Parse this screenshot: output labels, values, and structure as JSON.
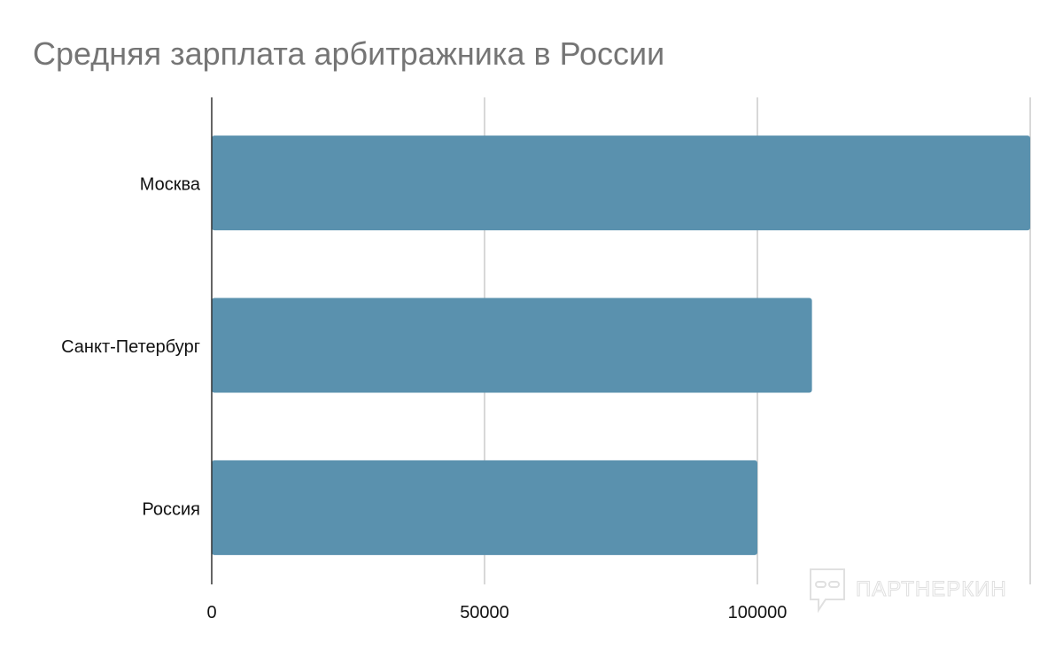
{
  "chart_data": {
    "type": "bar",
    "orientation": "horizontal",
    "title": "Средняя зарплата арбитражника в России",
    "categories": [
      "Москва",
      "Санкт-Петербург",
      "Россия"
    ],
    "values": [
      150000,
      110000,
      100000
    ],
    "xlabel": "",
    "ylabel": "",
    "xlim": [
      0,
      150000
    ],
    "xticks": [
      0,
      50000,
      100000
    ],
    "xtick_labels": [
      "0",
      "50000",
      "100000"
    ],
    "grid": true,
    "colors": {
      "bar": "#5a91ae",
      "grid": "#cccccc",
      "axis": "#333333",
      "title": "#757575"
    }
  },
  "watermark": "ПАРТНЕРКИН"
}
